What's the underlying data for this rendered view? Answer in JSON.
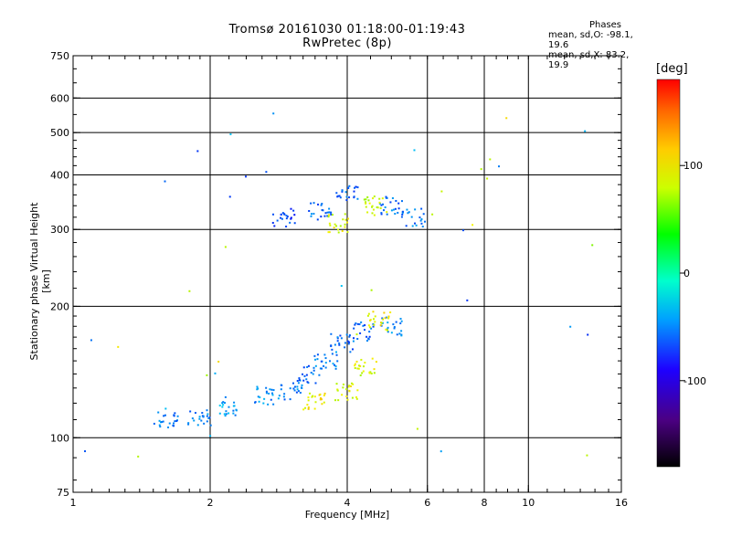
{
  "title_line1": "Tromsø 20161030 01:18:00-01:19:43",
  "title_line2": "RwPretec (8p)",
  "phases": {
    "header": "Phases",
    "line1": "mean, sd,O: -98.1, 19.6",
    "line2": "mean, sd,X: 83.2, 19.9"
  },
  "colorbar": {
    "unit": "[deg]",
    "ticks": [
      {
        "value": 100,
        "label": "100"
      },
      {
        "value": 0,
        "label": "0"
      },
      {
        "value": -100,
        "label": "-100"
      }
    ],
    "range": [
      -180,
      180
    ]
  },
  "chart_data": {
    "type": "scatter",
    "xlabel": "Frequency [MHz]",
    "ylabel": "Stationary phase Virtual Height [km]",
    "xscale": "log",
    "yscale": "log",
    "xlim": [
      1,
      16
    ],
    "ylim": [
      75,
      750
    ],
    "x_ticks": [
      {
        "value": 1,
        "label": "1"
      },
      {
        "value": 2,
        "label": "2"
      },
      {
        "value": 4,
        "label": "4"
      },
      {
        "value": 6,
        "label": "6"
      },
      {
        "value": 8,
        "label": "8"
      },
      {
        "value": 10,
        "label": "10"
      },
      {
        "value": 16,
        "label": "16"
      }
    ],
    "y_ticks": [
      {
        "value": 75,
        "label": "75"
      },
      {
        "value": 100,
        "label": "100"
      },
      {
        "value": 200,
        "label": "200"
      },
      {
        "value": 300,
        "label": "300"
      },
      {
        "value": 400,
        "label": "400"
      },
      {
        "value": 500,
        "label": "500"
      },
      {
        "value": 600,
        "label": "600"
      },
      {
        "value": 750,
        "label": "750"
      }
    ],
    "x_grid": [
      2,
      4,
      6,
      8,
      10
    ],
    "y_grid": [
      100,
      200,
      300,
      400,
      500,
      600
    ],
    "color_variable": "phase_deg",
    "trace_description_points": [
      {
        "f": 1.6,
        "h": 110,
        "phase": -100
      },
      {
        "f": 1.9,
        "h": 110,
        "phase": -100
      },
      {
        "f": 2.2,
        "h": 118,
        "phase": -90
      },
      {
        "f": 2.6,
        "h": 125,
        "phase": -95
      },
      {
        "f": 3.0,
        "h": 128,
        "phase": -100
      },
      {
        "f": 3.3,
        "h": 140,
        "phase": -105
      },
      {
        "f": 3.6,
        "h": 150,
        "phase": -100
      },
      {
        "f": 3.9,
        "h": 165,
        "phase": -105
      },
      {
        "f": 4.3,
        "h": 175,
        "phase": -110
      },
      {
        "f": 5.0,
        "h": 180,
        "phase": -100
      },
      {
        "f": 3.4,
        "h": 122,
        "phase": 100
      },
      {
        "f": 4.0,
        "h": 128,
        "phase": 95
      },
      {
        "f": 4.4,
        "h": 145,
        "phase": 90
      },
      {
        "f": 4.7,
        "h": 185,
        "phase": 100
      },
      {
        "f": 2.9,
        "h": 320,
        "phase": -120
      },
      {
        "f": 3.5,
        "h": 330,
        "phase": -105
      },
      {
        "f": 4.0,
        "h": 360,
        "phase": -110
      },
      {
        "f": 5.0,
        "h": 340,
        "phase": -105
      },
      {
        "f": 5.6,
        "h": 320,
        "phase": -100
      },
      {
        "f": 3.8,
        "h": 310,
        "phase": 90
      },
      {
        "f": 4.6,
        "h": 340,
        "phase": 85
      }
    ]
  }
}
